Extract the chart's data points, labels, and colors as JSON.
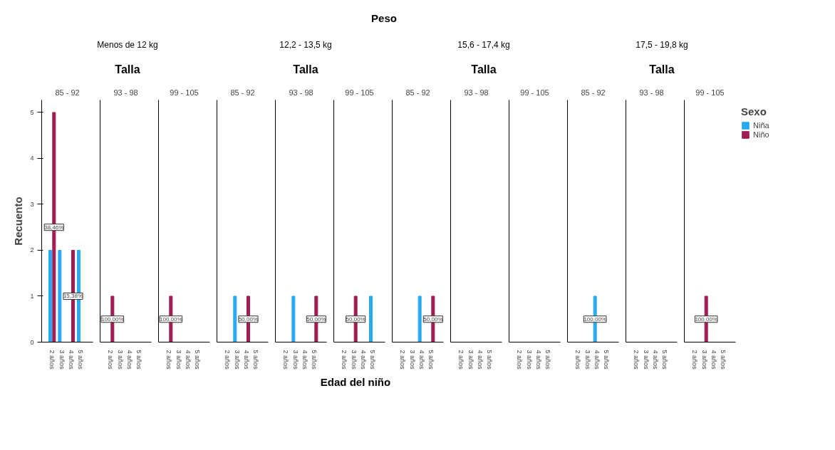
{
  "chart_data": [
    {
      "type": "bar",
      "title": "85 - 92",
      "annotations": [
        "Peso",
        "Menos de 12 kg",
        "Talla",
        {
          "text": "38,46%",
          "x": "2 años",
          "y": 2.5
        },
        {
          "text": "15,38%",
          "x": "4 años",
          "y": 1
        }
      ],
      "ylabel": "Recuento",
      "categories": [
        "2 años",
        "3 años",
        "4 años",
        "5 años"
      ],
      "ylim": [
        0,
        5.27
      ],
      "yticks": [
        0,
        1,
        2,
        3,
        4,
        5
      ],
      "series": [
        {
          "color": "#29a9f2",
          "values": [
            2,
            2,
            0,
            2
          ]
        },
        {
          "color": "#a01c52",
          "values": [
            5,
            0,
            2,
            0
          ]
        }
      ]
    },
    {
      "type": "bar",
      "title": "93 - 98",
      "annotations": [
        {
          "text": "100,00%",
          "x": "2 años",
          "y": 0.5
        }
      ],
      "categories": [
        "2 años",
        "3 años",
        "4 años",
        "5 años"
      ],
      "ylim": [
        0,
        5.27
      ],
      "yticks": [
        0,
        1,
        2,
        3,
        4,
        5
      ],
      "tick_labels": "x",
      "series": [
        {
          "color": "#29a9f2",
          "values": [
            0,
            0,
            0,
            0
          ]
        },
        {
          "color": "#a01c52",
          "values": [
            1,
            0,
            0,
            0
          ]
        }
      ]
    },
    {
      "type": "bar",
      "title": "99 - 105",
      "annotations": [
        {
          "text": "100,00%",
          "x": "2 años",
          "y": 0.5
        }
      ],
      "categories": [
        "2 años",
        "3 años",
        "4 años",
        "5 años"
      ],
      "ylim": [
        0,
        5.27
      ],
      "yticks": [
        0,
        1,
        2,
        3,
        4,
        5
      ],
      "tick_labels": "x",
      "series": [
        {
          "color": "#29a9f2",
          "values": [
            0,
            0,
            0,
            0
          ]
        },
        {
          "color": "#a01c52",
          "values": [
            1,
            0,
            0,
            0
          ]
        }
      ]
    },
    {
      "type": "bar",
      "title": "85 - 92",
      "annotations": [
        "12,2 - 13,5 kg",
        "Talla",
        {
          "text": "50,00%",
          "x": "4 años",
          "y": 0.5
        }
      ],
      "categories": [
        "2 años",
        "3 años",
        "4 años",
        "5 años"
      ],
      "ylim": [
        0,
        5.27
      ],
      "yticks": [
        0,
        1,
        2,
        3,
        4,
        5
      ],
      "tick_labels": "x",
      "series": [
        {
          "color": "#29a9f2",
          "values": [
            0,
            1,
            0,
            0
          ]
        },
        {
          "color": "#a01c52",
          "values": [
            0,
            0,
            1,
            0
          ]
        }
      ]
    },
    {
      "type": "bar",
      "title": "93 - 98",
      "annotations": [
        {
          "text": "50,00%",
          "x": "5 años",
          "y": 0.5
        }
      ],
      "categories": [
        "2 años",
        "3 años",
        "4 años",
        "5 años"
      ],
      "ylim": [
        0,
        5.27
      ],
      "yticks": [
        0,
        1,
        2,
        3,
        4,
        5
      ],
      "tick_labels": "x",
      "series": [
        {
          "color": "#29a9f2",
          "values": [
            0,
            1,
            0,
            0
          ]
        },
        {
          "color": "#a01c52",
          "values": [
            0,
            0,
            0,
            1
          ]
        }
      ]
    },
    {
      "type": "bar",
      "title": "99 - 105",
      "xlabel": "Edad del niño",
      "annotations": [
        {
          "text": "50,00%",
          "x": "3 años",
          "y": 0.5
        }
      ],
      "categories": [
        "2 años",
        "3 años",
        "4 años",
        "5 años"
      ],
      "ylim": [
        0,
        5.27
      ],
      "yticks": [
        0,
        1,
        2,
        3,
        4,
        5
      ],
      "tick_labels": "x",
      "series": [
        {
          "color": "#29a9f2",
          "values": [
            0,
            0,
            0,
            1
          ]
        },
        {
          "color": "#a01c52",
          "values": [
            0,
            1,
            0,
            0
          ]
        }
      ]
    },
    {
      "type": "bar",
      "title": "85 - 92",
      "annotations": [
        "15,6 - 17,4 kg",
        "Talla",
        {
          "text": "50,00%",
          "x": "5 años",
          "y": 0.5
        }
      ],
      "categories": [
        "2 años",
        "3 años",
        "4 años",
        "5 años"
      ],
      "ylim": [
        0,
        5.27
      ],
      "yticks": [
        0,
        1,
        2,
        3,
        4,
        5
      ],
      "tick_labels": "x",
      "series": [
        {
          "color": "#29a9f2",
          "values": [
            0,
            0,
            1,
            0
          ]
        },
        {
          "color": "#a01c52",
          "values": [
            0,
            0,
            0,
            1
          ]
        }
      ]
    },
    {
      "type": "bar",
      "title": "93 - 98",
      "categories": [
        "2 años",
        "3 años",
        "4 años",
        "5 años"
      ],
      "ylim": [
        0,
        5.27
      ],
      "yticks": [
        0,
        1,
        2,
        3,
        4,
        5
      ],
      "tick_labels": "x",
      "series": [
        {
          "color": "#29a9f2",
          "values": [
            0,
            0,
            0,
            0
          ]
        },
        {
          "color": "#a01c52",
          "values": [
            0,
            0,
            0,
            0
          ]
        }
      ]
    },
    {
      "type": "bar",
      "title": "99 - 105",
      "categories": [
        "2 años",
        "3 años",
        "4 años",
        "5 años"
      ],
      "ylim": [
        0,
        5.27
      ],
      "yticks": [
        0,
        1,
        2,
        3,
        4,
        5
      ],
      "tick_labels": "x",
      "series": [
        {
          "color": "#29a9f2",
          "values": [
            0,
            0,
            0,
            0
          ]
        },
        {
          "color": "#a01c52",
          "values": [
            0,
            0,
            0,
            0
          ]
        }
      ]
    },
    {
      "type": "bar",
      "title": "85 - 92",
      "annotations": [
        "17,5 - 19,8 kg",
        "Talla",
        {
          "text": "100,00%",
          "x": "4 años",
          "y": 0.5
        }
      ],
      "categories": [
        "2 años",
        "3 años",
        "4 años",
        "5 años"
      ],
      "ylim": [
        0,
        5.27
      ],
      "yticks": [
        0,
        1,
        2,
        3,
        4,
        5
      ],
      "tick_labels": "x",
      "series": [
        {
          "color": "#29a9f2",
          "values": [
            0,
            0,
            1,
            0
          ]
        },
        {
          "color": "#a01c52",
          "values": [
            0,
            0,
            0,
            0
          ]
        }
      ]
    },
    {
      "type": "bar",
      "title": "93 - 98",
      "categories": [
        "2 años",
        "3 años",
        "4 años",
        "5 años"
      ],
      "ylim": [
        0,
        5.27
      ],
      "yticks": [
        0,
        1,
        2,
        3,
        4,
        5
      ],
      "tick_labels": "x",
      "series": [
        {
          "color": "#29a9f2",
          "values": [
            0,
            0,
            0,
            0
          ]
        },
        {
          "color": "#a01c52",
          "values": [
            0,
            0,
            0,
            0
          ]
        }
      ]
    },
    {
      "type": "bar",
      "title": "99 - 105",
      "annotations": [
        {
          "text": "100,00%",
          "x": "3 años",
          "y": 0.5
        }
      ],
      "categories": [
        "2 años",
        "3 años",
        "4 años",
        "5 años"
      ],
      "ylim": [
        0,
        5.27
      ],
      "yticks": [
        0,
        1,
        2,
        3,
        4,
        5
      ],
      "tick_labels": "x",
      "legend": "top right",
      "legend_title": "Sexo",
      "series": [
        {
          "name": "Niña",
          "color": "#29a9f2",
          "values": [
            0,
            0,
            0,
            0
          ]
        },
        {
          "name": "Niño",
          "color": "#a01c52",
          "values": [
            0,
            1,
            0,
            0
          ]
        }
      ]
    }
  ]
}
